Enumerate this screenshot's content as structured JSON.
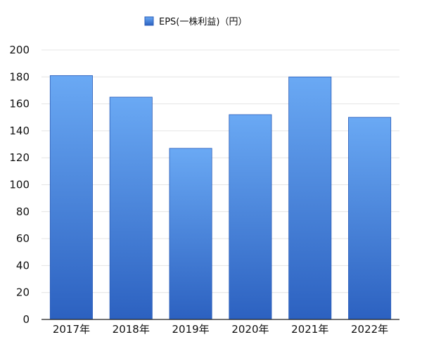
{
  "chart_data": {
    "type": "bar",
    "categories": [
      "2017年",
      "2018年",
      "2019年",
      "2020年",
      "2021年",
      "2022年"
    ],
    "series": [
      {
        "name": "EPS(一株利益)（円）",
        "values": [
          181,
          165,
          127,
          152,
          180,
          150
        ]
      }
    ],
    "title": "",
    "xlabel": "",
    "ylabel": "",
    "ylim": [
      0,
      200
    ],
    "yticks": [
      0,
      20,
      40,
      60,
      80,
      100,
      120,
      140,
      160,
      180,
      200
    ],
    "grid": true,
    "legend_position": "top-center",
    "colors": {
      "bar_top": "#6aa9f4",
      "bar_bottom": "#2c61c0",
      "bar_edge": "#2a5cb8",
      "grid": "#e4e4e4",
      "axis": "#222222"
    }
  }
}
